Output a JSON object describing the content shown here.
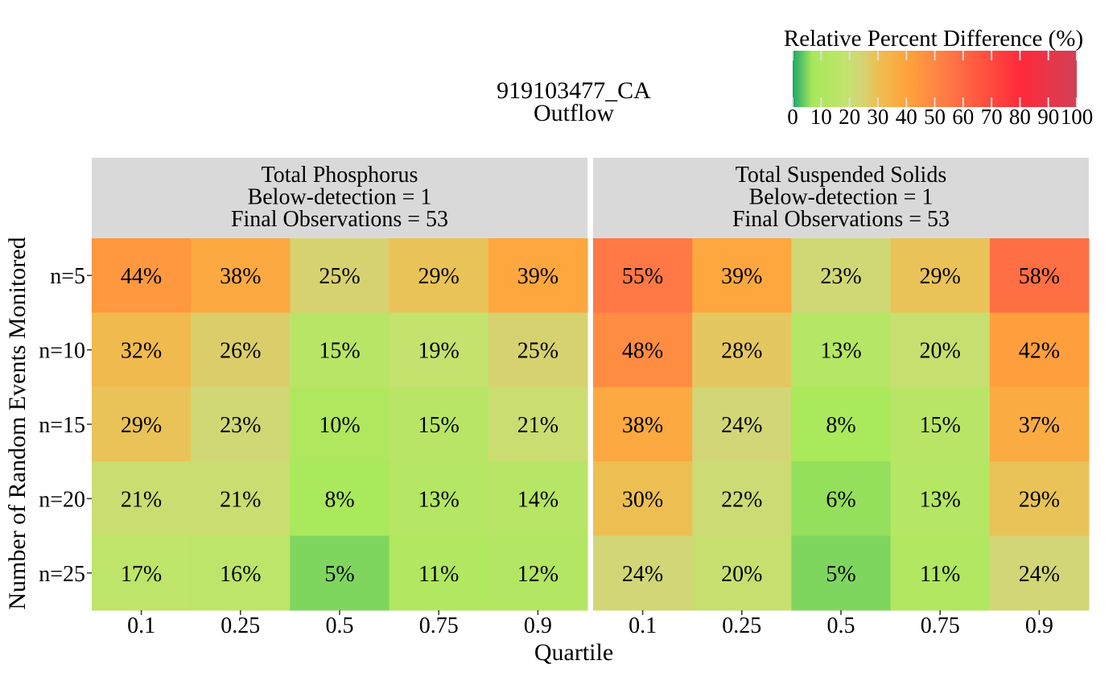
{
  "chart_data": {
    "type": "heatmap",
    "title_lines": [
      "919103477_CA",
      "Outflow"
    ],
    "xlabel": "Quartile",
    "ylabel": "Number of Random Events Monitored",
    "x_categories": [
      "0.1",
      "0.25",
      "0.5",
      "0.75",
      "0.9"
    ],
    "y_categories": [
      "n=5",
      "n=10",
      "n=15",
      "n=20",
      "n=25"
    ],
    "value_suffix": "%",
    "legend": {
      "title": "Relative Percent Difference (%)",
      "position": "top-right",
      "range": [
        0,
        100
      ],
      "ticks": [
        "0",
        "10",
        "20",
        "30",
        "40",
        "50",
        "60",
        "70",
        "80",
        "90",
        "100"
      ],
      "colors": [
        {
          "value": 0,
          "color": "#1aa86b"
        },
        {
          "value": 7,
          "color": "#a8e85a"
        },
        {
          "value": 18,
          "color": "#c0e46c"
        },
        {
          "value": 24,
          "color": "#d2d676"
        },
        {
          "value": 30,
          "color": "#edbf52"
        },
        {
          "value": 40,
          "color": "#ffa43c"
        },
        {
          "value": 55,
          "color": "#ff7845"
        },
        {
          "value": 80,
          "color": "#ff2a3a"
        },
        {
          "value": 100,
          "color": "#d24056"
        }
      ]
    },
    "panels": [
      {
        "strip_lines": [
          "Total Phosphorus",
          "Below-detection = 1",
          "Final Observations = 53"
        ],
        "values": [
          [
            44,
            38,
            25,
            29,
            39
          ],
          [
            32,
            26,
            15,
            19,
            25
          ],
          [
            29,
            23,
            10,
            15,
            21
          ],
          [
            21,
            21,
            8,
            13,
            14
          ],
          [
            17,
            16,
            5,
            11,
            12
          ]
        ]
      },
      {
        "strip_lines": [
          "Total Suspended Solids",
          "Below-detection = 1",
          "Final Observations = 53"
        ],
        "values": [
          [
            55,
            39,
            23,
            29,
            58
          ],
          [
            48,
            28,
            13,
            20,
            42
          ],
          [
            38,
            24,
            8,
            15,
            37
          ],
          [
            30,
            22,
            6,
            13,
            29
          ],
          [
            24,
            20,
            5,
            11,
            24
          ]
        ]
      }
    ]
  }
}
